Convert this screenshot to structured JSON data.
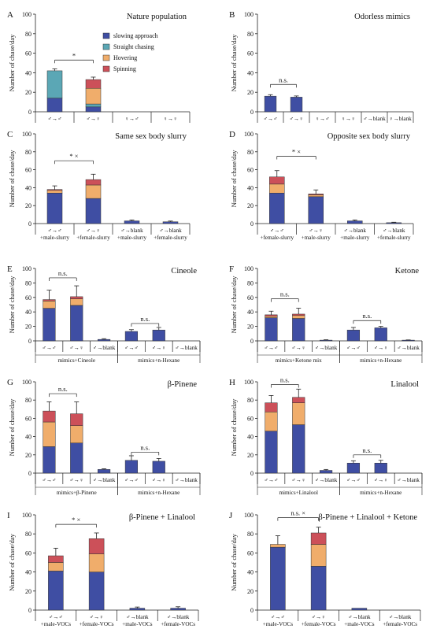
{
  "figure": {
    "colors": {
      "slowing approach": "#3f4ea3",
      "Straight chasing": "#5ba7b5",
      "Hovering": "#f0ad6b",
      "Spinning": "#cc5059"
    },
    "arrows": {
      "mm": "♂→♂",
      "mf": "♂→♀",
      "fm": "♀→♂",
      "ff": "♀→♀",
      "mblank": "♂→blank",
      "fblank": "♀→blank"
    }
  },
  "chart_data": [
    {
      "panel": "A",
      "title": "Nature population",
      "type": "bar",
      "ylabel": "Number of chase/day",
      "ylim": [
        0,
        100
      ],
      "yticks": [
        0,
        20,
        40,
        60,
        80,
        100
      ],
      "legend": [
        "slowing approach",
        "Straight chasing",
        "Hovering",
        "Spinning"
      ],
      "categories": [
        [
          "♂→♂"
        ],
        [
          "♂→♀"
        ],
        [
          "♀→♂"
        ],
        [
          "♀→♀"
        ]
      ],
      "series": [
        {
          "name": "slowing approach",
          "values": [
            14,
            5,
            0,
            0
          ]
        },
        {
          "name": "Straight chasing",
          "values": [
            28,
            3,
            0,
            0
          ]
        },
        {
          "name": "Hovering",
          "values": [
            0,
            16,
            0,
            0
          ]
        },
        {
          "name": "Spinning",
          "values": [
            0,
            9,
            0,
            0
          ]
        }
      ],
      "errors": [
        2,
        2.5,
        null,
        null
      ],
      "annotations": [
        {
          "text": "*",
          "from": 0,
          "to": 1,
          "y": 53
        }
      ]
    },
    {
      "panel": "B",
      "title": "Odorless mimics",
      "type": "bar",
      "ylabel": "Number of chase/day",
      "ylim": [
        0,
        100
      ],
      "yticks": [
        0,
        20,
        40,
        60,
        80,
        100
      ],
      "categories": [
        [
          "♂→♂"
        ],
        [
          "♂→♀"
        ],
        [
          "♀→♂"
        ],
        [
          "♀→♀"
        ],
        [
          "♂→blank"
        ],
        [
          "♀→blank"
        ]
      ],
      "series": [
        {
          "name": "slowing approach",
          "values": [
            16,
            15,
            0,
            0,
            0,
            0
          ]
        }
      ],
      "errors": [
        1.5,
        1.2,
        null,
        null,
        null,
        null
      ],
      "annotations": [
        {
          "text": "n.s.",
          "from": 0,
          "to": 1,
          "y": 28
        }
      ]
    },
    {
      "panel": "C",
      "title": "Same sex body slurry",
      "type": "bar",
      "ylabel": "Number of chase/day",
      "ylim": [
        0,
        100
      ],
      "yticks": [
        0,
        20,
        40,
        60,
        80,
        100
      ],
      "categories": [
        [
          "♂→♂",
          "+male-slurry"
        ],
        [
          "♂→♀",
          "+female-slurry"
        ],
        [
          "♂→blank",
          "+male-slurry"
        ],
        [
          "♂→blank",
          "+female-slurry"
        ]
      ],
      "series": [
        {
          "name": "slowing approach",
          "values": [
            34,
            28,
            3,
            2
          ]
        },
        {
          "name": "Hovering",
          "values": [
            3,
            15,
            0,
            0
          ]
        },
        {
          "name": "Spinning",
          "values": [
            1,
            6,
            0,
            0
          ]
        }
      ],
      "errors": [
        4,
        6,
        1,
        0.8
      ],
      "annotations": [
        {
          "text": "*  ×",
          "from": 0,
          "to": 1,
          "y": 70
        }
      ]
    },
    {
      "panel": "D",
      "title": "Opposite sex body slurry",
      "type": "bar",
      "ylabel": "Number of chase/day",
      "ylim": [
        0,
        100
      ],
      "yticks": [
        0,
        20,
        40,
        60,
        80,
        100
      ],
      "categories": [
        [
          "♂→♂",
          "+female-slurry"
        ],
        [
          "♂→♀",
          "+male-slurry"
        ],
        [
          "♂→blank",
          "+male-slurry"
        ],
        [
          "♂→blank",
          "+female-slurry"
        ]
      ],
      "series": [
        {
          "name": "slowing approach",
          "values": [
            34,
            30,
            3,
            1
          ]
        },
        {
          "name": "Hovering",
          "values": [
            10,
            2,
            0,
            0
          ]
        },
        {
          "name": "Spinning",
          "values": [
            8,
            1,
            0,
            0
          ]
        }
      ],
      "errors": [
        7,
        4.5,
        1,
        0.5
      ],
      "annotations": [
        {
          "text": "*  ×",
          "from": 0,
          "to": 1,
          "y": 75
        }
      ]
    },
    {
      "panel": "E",
      "title": "Cineole",
      "type": "bar",
      "ylabel": "Number of chase/day",
      "ylim": [
        0,
        100
      ],
      "yticks": [
        0,
        20,
        40,
        60,
        80,
        100
      ],
      "categories": [
        [
          "♂→♂"
        ],
        [
          "♂→♀"
        ],
        [
          "♂→blank"
        ],
        [
          "♂→♂"
        ],
        [
          "♂→♀"
        ],
        [
          "♂→blank"
        ]
      ],
      "groups": [
        {
          "label": "mimics+Cineole",
          "from": 0,
          "to": 2
        },
        {
          "label": "mimics+n-Hexane",
          "from": 3,
          "to": 5
        }
      ],
      "series": [
        {
          "name": "slowing approach",
          "values": [
            45,
            49,
            2,
            13,
            15,
            0
          ]
        },
        {
          "name": "Hovering",
          "values": [
            10,
            9,
            0,
            0,
            0,
            0
          ]
        },
        {
          "name": "Spinning",
          "values": [
            2,
            3,
            0,
            0,
            0,
            0
          ]
        }
      ],
      "errors": [
        13,
        15,
        1,
        2.5,
        3.5,
        null
      ],
      "annotations": [
        {
          "text": "n.s.",
          "from": 0,
          "to": 1,
          "y": 87
        },
        {
          "text": "n.s.",
          "from": 3,
          "to": 4,
          "y": 24
        }
      ]
    },
    {
      "panel": "F",
      "title": "Ketone",
      "type": "bar",
      "ylabel": "Number of chase/day",
      "ylim": [
        0,
        100
      ],
      "yticks": [
        0,
        20,
        40,
        60,
        80,
        100
      ],
      "categories": [
        [
          "♂→♂"
        ],
        [
          "♂→♀"
        ],
        [
          "♂→blank"
        ],
        [
          "♂→♂"
        ],
        [
          "♂→♀"
        ],
        [
          "♂→blank"
        ]
      ],
      "groups": [
        {
          "label": "mimics+Ketone mix",
          "from": 0,
          "to": 2
        },
        {
          "label": "mimics+n-Hexane",
          "from": 3,
          "to": 5
        }
      ],
      "series": [
        {
          "name": "slowing approach",
          "values": [
            32,
            31,
            1,
            15,
            18,
            1
          ]
        },
        {
          "name": "Hovering",
          "values": [
            2,
            4,
            0,
            0,
            0,
            0
          ]
        },
        {
          "name": "Spinning",
          "values": [
            2,
            2,
            0,
            0,
            0,
            0
          ]
        }
      ],
      "errors": [
        5,
        8,
        0.5,
        3.5,
        2,
        0.3
      ],
      "annotations": [
        {
          "text": "n.s.",
          "from": 0,
          "to": 1,
          "y": 58
        },
        {
          "text": "n.s.",
          "from": 3,
          "to": 4,
          "y": 28
        }
      ]
    },
    {
      "panel": "G",
      "title": "β-Pinene",
      "type": "bar",
      "ylabel": "Number of chase/day",
      "ylim": [
        0,
        100
      ],
      "yticks": [
        0,
        20,
        40,
        60,
        80,
        100
      ],
      "categories": [
        [
          "♂→♂"
        ],
        [
          "♂→♀"
        ],
        [
          "♂→blank"
        ],
        [
          "♂→♂"
        ],
        [
          "♂→♀"
        ],
        [
          "♂→blank"
        ]
      ],
      "groups": [
        {
          "label": "mimics+β-Pinene",
          "from": 0,
          "to": 2
        },
        {
          "label": "mimics+n-Hexane",
          "from": 3,
          "to": 5
        }
      ],
      "series": [
        {
          "name": "slowing approach",
          "values": [
            29,
            33,
            4,
            14,
            13,
            0
          ]
        },
        {
          "name": "Hovering",
          "values": [
            27,
            19,
            0,
            0,
            0,
            0
          ]
        },
        {
          "name": "Spinning",
          "values": [
            12,
            13,
            0,
            0,
            0,
            0
          ]
        }
      ],
      "errors": [
        10,
        13,
        0.8,
        5,
        3,
        null
      ],
      "annotations": [
        {
          "text": "n.s.",
          "from": 0,
          "to": 1,
          "y": 87
        },
        {
          "text": "n.s.",
          "from": 3,
          "to": 4,
          "y": 23
        }
      ]
    },
    {
      "panel": "H",
      "title": "Linalool",
      "type": "bar",
      "ylabel": "Number of chase/day",
      "ylim": [
        0,
        100
      ],
      "yticks": [
        0,
        20,
        40,
        60,
        80,
        100
      ],
      "categories": [
        [
          "♂→♂"
        ],
        [
          "♂→♀"
        ],
        [
          "♂→blank"
        ],
        [
          "♂→♂"
        ],
        [
          "♂→♀"
        ],
        [
          "♂→blank"
        ]
      ],
      "groups": [
        {
          "label": "mimics+Linalool",
          "from": 0,
          "to": 2
        },
        {
          "label": "mimics+n-Hexane",
          "from": 3,
          "to": 5
        }
      ],
      "series": [
        {
          "name": "slowing approach",
          "values": [
            46,
            53,
            3,
            11,
            11,
            0
          ]
        },
        {
          "name": "Hovering",
          "values": [
            21,
            24,
            0,
            0,
            0,
            0
          ]
        },
        {
          "name": "Spinning",
          "values": [
            10,
            6,
            0,
            0,
            0,
            0
          ]
        }
      ],
      "errors": [
        8,
        9,
        1,
        2.5,
        3,
        null
      ],
      "annotations": [
        {
          "text": "n.s.",
          "from": 0,
          "to": 1,
          "y": 97
        },
        {
          "text": "n.s.",
          "from": 3,
          "to": 4,
          "y": 20
        }
      ]
    },
    {
      "panel": "I",
      "title": "β-Pinene + Linalool",
      "type": "bar",
      "ylabel": "Number of chase/day",
      "ylim": [
        0,
        100
      ],
      "yticks": [
        0,
        20,
        40,
        60,
        80,
        100
      ],
      "categories": [
        [
          "♂→♂",
          "+male-VOCs"
        ],
        [
          "♂→♀",
          "+female-VOCs"
        ],
        [
          "♂→blank",
          "+male-VOCs"
        ],
        [
          "♂→blank",
          "+female-VOCs"
        ]
      ],
      "series": [
        {
          "name": "slowing approach",
          "values": [
            41,
            40,
            2,
            2
          ]
        },
        {
          "name": "Hovering",
          "values": [
            9,
            19,
            0,
            0
          ]
        },
        {
          "name": "Spinning",
          "values": [
            7,
            16,
            0,
            0
          ]
        }
      ],
      "errors": [
        8,
        6,
        1.2,
        1.5
      ],
      "annotations": [
        {
          "text": "*  ×",
          "from": 0,
          "to": 1,
          "y": 90
        }
      ]
    },
    {
      "panel": "J",
      "title": "β-Pinene + Linalool + Ketone",
      "type": "bar",
      "ylabel": "Number of chase/day",
      "ylim": [
        0,
        100
      ],
      "yticks": [
        0,
        20,
        40,
        60,
        80,
        100
      ],
      "categories": [
        [
          "♂→♂",
          "+male-VOCs"
        ],
        [
          "♂→♀",
          "+female-VOCs"
        ],
        [
          "♂→blank",
          "+male-VOCs"
        ],
        [
          "♂→blank",
          "+female-VOCs"
        ]
      ],
      "series": [
        {
          "name": "slowing approach",
          "values": [
            66,
            46,
            2,
            0
          ]
        },
        {
          "name": "Hovering",
          "values": [
            3,
            23,
            0,
            0
          ]
        },
        {
          "name": "Spinning",
          "values": [
            0,
            12,
            0,
            0
          ]
        }
      ],
      "errors": [
        9,
        6,
        null,
        null
      ],
      "annotations": [
        {
          "text": "n.s.  ×",
          "from": 0,
          "to": 1,
          "y": 97
        }
      ]
    }
  ]
}
